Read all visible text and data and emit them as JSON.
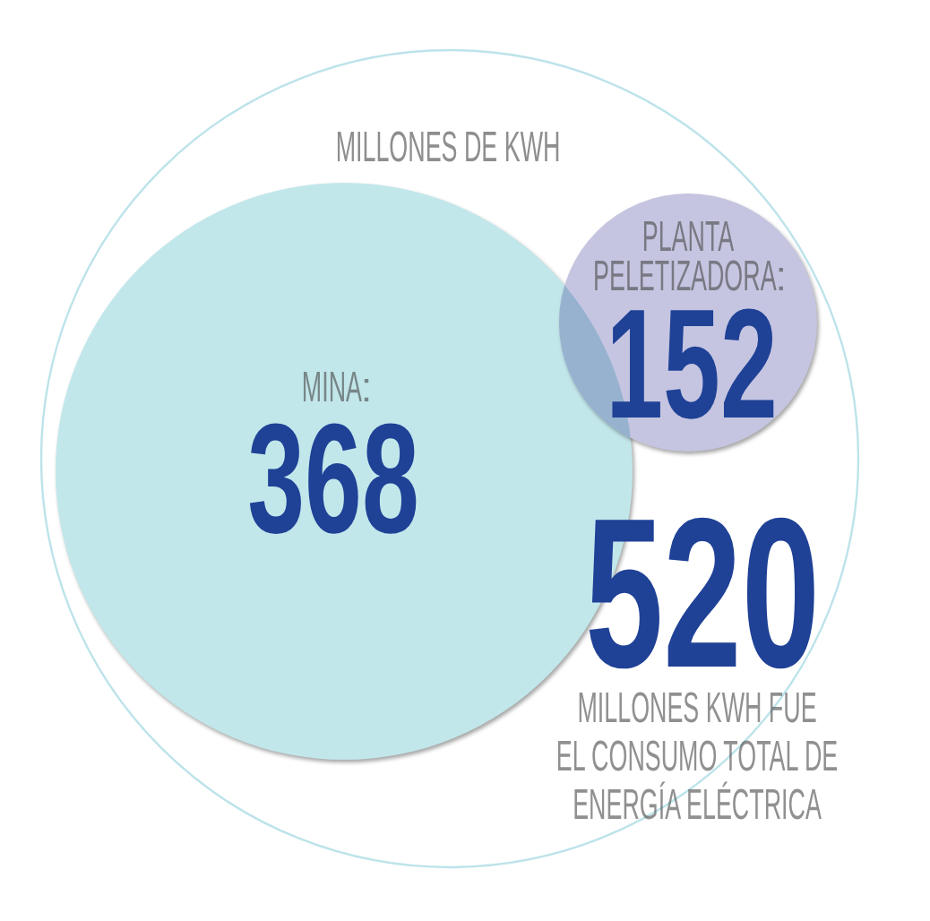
{
  "chart_data": {
    "type": "other",
    "title": "MILLONES DE KWH",
    "categories": [
      "MINA",
      "PLANTA\nPELETIZADORA",
      "MILLONES KWH FUE\nEL CONSUMO TOTAL DE\nENERGÍA ELÉCTRICA"
    ],
    "values": [
      368,
      152,
      520
    ],
    "colors": [
      "#c2e7eb",
      "#c5c5e1",
      "#bde3ea"
    ],
    "data_labels": true
  }
}
